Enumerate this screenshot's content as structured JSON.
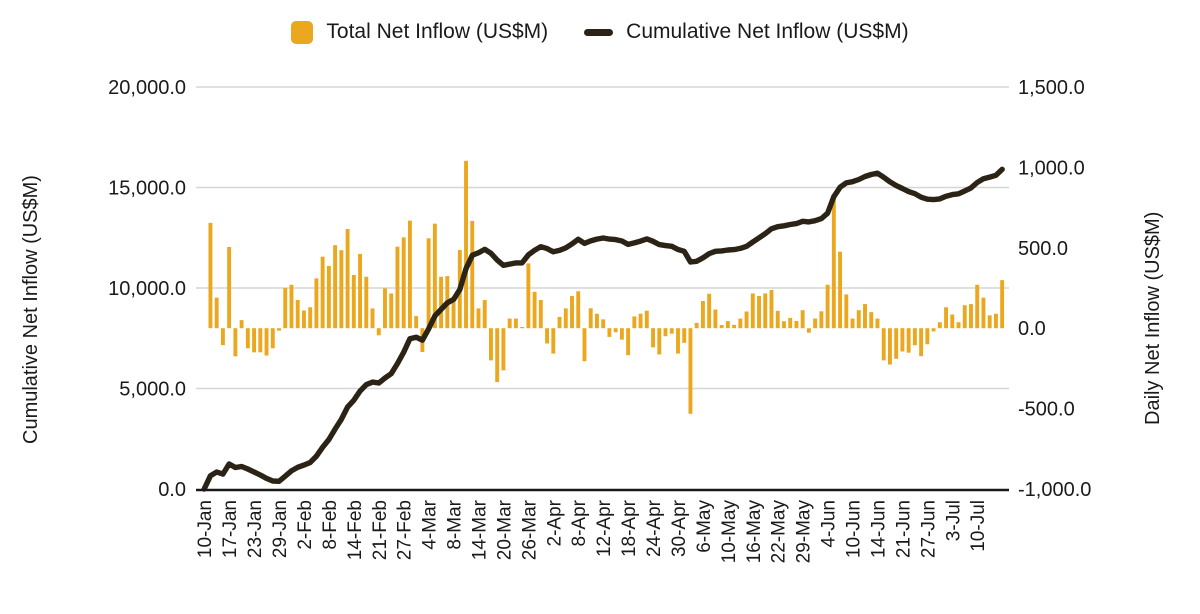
{
  "legend": {
    "items": [
      {
        "label": "Total Net Inflow (US$M)",
        "swatch": "bar-square",
        "color": "#EBA71E"
      },
      {
        "label": "Cumulative Net Inflow (US$M)",
        "swatch": "line-dash",
        "color": "#2B2416"
      }
    ]
  },
  "y_axis_left": {
    "title": "Cumulative Net Inflow (US$M)",
    "tick_labels": [
      "0.0",
      "5,000.0",
      "10,000.0",
      "15,000.0",
      "20,000.0"
    ],
    "range": [
      0,
      20000
    ]
  },
  "y_axis_right": {
    "title": "Daily Net Inflow (US$M)",
    "tick_labels": [
      "-1,000.0",
      "-500.0",
      "0.0",
      "500.0",
      "1,000.0",
      "1,500.0"
    ],
    "range": [
      -1000,
      1500
    ]
  },
  "x_axis": {
    "shown_tick_labels": [
      "10-Jan",
      "17-Jan",
      "23-Jan",
      "29-Jan",
      "2-Feb",
      "8-Feb",
      "14-Feb",
      "21-Feb",
      "27-Feb",
      "4-Mar",
      "8-Mar",
      "14-Mar",
      "20-Mar",
      "26-Mar",
      "2-Apr",
      "8-Apr",
      "12-Apr",
      "18-Apr",
      "24-Apr",
      "30-Apr",
      "6-May",
      "10-May",
      "16-May",
      "22-May",
      "29-May",
      "4-Jun",
      "10-Jun",
      "14-Jun",
      "21-Jun",
      "27-Jun",
      "3-Jul",
      "10-Jul"
    ],
    "label_interval": 4
  },
  "chart_data": {
    "type": "combo",
    "grid": true,
    "legend_position": "top",
    "x": [
      "10-Jan",
      "11-Jan",
      "12-Jan",
      "16-Jan",
      "17-Jan",
      "18-Jan",
      "19-Jan",
      "22-Jan",
      "23-Jan",
      "24-Jan",
      "25-Jan",
      "26-Jan",
      "29-Jan",
      "30-Jan",
      "31-Jan",
      "1-Feb",
      "2-Feb",
      "5-Feb",
      "6-Feb",
      "7-Feb",
      "8-Feb",
      "9-Feb",
      "12-Feb",
      "13-Feb",
      "14-Feb",
      "15-Feb",
      "16-Feb",
      "20-Feb",
      "21-Feb",
      "22-Feb",
      "23-Feb",
      "26-Feb",
      "27-Feb",
      "28-Feb",
      "29-Feb",
      "1-Mar",
      "4-Mar",
      "5-Mar",
      "6-Mar",
      "7-Mar",
      "8-Mar",
      "11-Mar",
      "12-Mar",
      "13-Mar",
      "14-Mar",
      "15-Mar",
      "18-Mar",
      "19-Mar",
      "20-Mar",
      "21-Mar",
      "22-Mar",
      "25-Mar",
      "26-Mar",
      "27-Mar",
      "28-Mar",
      "1-Apr",
      "2-Apr",
      "3-Apr",
      "4-Apr",
      "5-Apr",
      "8-Apr",
      "9-Apr",
      "10-Apr",
      "11-Apr",
      "12-Apr",
      "15-Apr",
      "16-Apr",
      "17-Apr",
      "18-Apr",
      "19-Apr",
      "22-Apr",
      "23-Apr",
      "24-Apr",
      "25-Apr",
      "26-Apr",
      "29-Apr",
      "30-Apr",
      "1-May",
      "2-May",
      "3-May",
      "6-May",
      "7-May",
      "8-May",
      "9-May",
      "10-May",
      "13-May",
      "14-May",
      "15-May",
      "16-May",
      "17-May",
      "20-May",
      "21-May",
      "22-May",
      "23-May",
      "24-May",
      "28-May",
      "29-May",
      "30-May",
      "31-May",
      "3-Jun",
      "4-Jun",
      "5-Jun",
      "6-Jun",
      "7-Jun",
      "10-Jun",
      "11-Jun",
      "12-Jun",
      "13-Jun",
      "14-Jun",
      "17-Jun",
      "18-Jun",
      "20-Jun",
      "21-Jun",
      "24-Jun",
      "25-Jun",
      "26-Jun",
      "27-Jun",
      "28-Jun",
      "1-Jul",
      "2-Jul",
      "3-Jul",
      "5-Jul",
      "8-Jul",
      "9-Jul",
      "10-Jul",
      "11-Jul",
      "12-Jul",
      "15-Jul",
      "16-Jul"
    ],
    "series": [
      {
        "name": "Total Net Inflow (US$M)",
        "type": "bar",
        "axis": "right",
        "color": "#EBA71E",
        "values": [
          0,
          655,
          190,
          -105,
          505,
          -175,
          50,
          -125,
          -150,
          -150,
          -170,
          -125,
          -15,
          250,
          270,
          175,
          110,
          130,
          310,
          445,
          387,
          516,
          485,
          617,
          331,
          462,
          320,
          123,
          -44,
          248,
          216,
          507,
          565,
          669,
          75,
          -148,
          559,
          650,
          320,
          324,
          175,
          486,
          1041,
          667,
          123,
          175,
          -200,
          -335,
          -262,
          60,
          60,
          2,
          403,
          226,
          175,
          -95,
          -158,
          70,
          123,
          200,
          230,
          -205,
          124,
          90,
          55,
          -54,
          -25,
          -71,
          -168,
          73,
          90,
          109,
          -119,
          -163,
          -50,
          -34,
          -158,
          -91,
          -532,
          33,
          169,
          214,
          116,
          20,
          44,
          21,
          60,
          104,
          216,
          200,
          216,
          237,
          108,
          43,
          64,
          45,
          112,
          -28,
          60,
          105,
          270,
          818,
          476,
          210,
          60,
          112,
          150,
          100,
          60,
          -200,
          -226,
          -190,
          -145,
          -152,
          -106,
          -174,
          -100,
          -20,
          37,
          130,
          85,
          37,
          143,
          150,
          270,
          190,
          80,
          90,
          299
        ]
      },
      {
        "name": "Cumulative Net Inflow (US$M)",
        "type": "line",
        "axis": "left",
        "color": "#2B2416",
        "values": [
          0,
          655,
          845,
          740,
          1245,
          1070,
          1120,
          995,
          845,
          695,
          525,
          400,
          385,
          635,
          905,
          1080,
          1190,
          1320,
          1630,
          2075,
          2462,
          2978,
          3463,
          4080,
          4411,
          4873,
          5193,
          5316,
          5272,
          5520,
          5736,
          6243,
          6808,
          7477,
          7552,
          7404,
          7963,
          8613,
          8933,
          9257,
          9432,
          9918,
          10959,
          11626,
          11749,
          11924,
          11724,
          11389,
          11127,
          11187,
          11247,
          11249,
          11652,
          11878,
          12053,
          11958,
          11800,
          11870,
          11993,
          12193,
          12423,
          12218,
          12342,
          12432,
          12487,
          12433,
          12408,
          12337,
          12169,
          12242,
          12332,
          12441,
          12322,
          12159,
          12109,
          12075,
          11917,
          11826,
          11294,
          11327,
          11496,
          11710,
          11826,
          11846,
          11890,
          11911,
          11971,
          12075,
          12291,
          12491,
          12707,
          12944,
          13052,
          13095,
          13159,
          13204,
          13316,
          13288,
          13348,
          13453,
          13723,
          14541,
          15017,
          15227,
          15287,
          15399,
          15549,
          15649,
          15709,
          15509,
          15283,
          15093,
          14948,
          14796,
          14690,
          14516,
          14416,
          14396,
          14433,
          14563,
          14648,
          14685,
          14828,
          14978,
          15248,
          15438,
          15518,
          15608,
          15907
        ]
      }
    ],
    "ylim_left": [
      0,
      20000
    ],
    "ylim_right": [
      -1000,
      1500
    ]
  },
  "style_colors": {
    "gridline": "#D6D6D6",
    "axis_line": "#1a1a1a",
    "text": "#1a1a1a"
  }
}
